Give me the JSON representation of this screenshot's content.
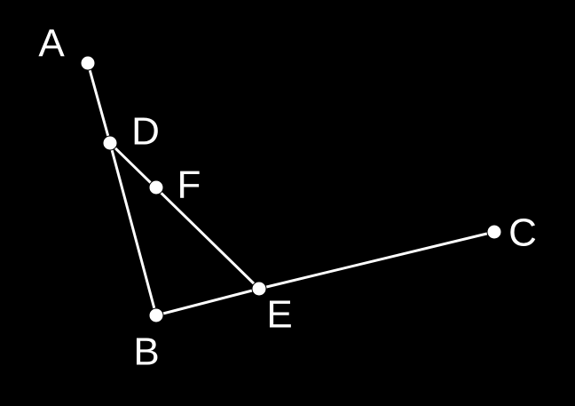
{
  "figure": {
    "points": [
      {
        "id": "A",
        "label": "A"
      },
      {
        "id": "D",
        "label": "D"
      },
      {
        "id": "F",
        "label": "F"
      },
      {
        "id": "B",
        "label": "B"
      },
      {
        "id": "E",
        "label": "E"
      },
      {
        "id": "C",
        "label": "C"
      }
    ],
    "segments": [
      [
        "A",
        "D"
      ],
      [
        "D",
        "B"
      ],
      [
        "D",
        "E"
      ],
      [
        "B",
        "E"
      ],
      [
        "E",
        "C"
      ]
    ],
    "colors": {
      "background": "#000000",
      "stroke": "#ffffff",
      "label": "#ffffff"
    }
  }
}
